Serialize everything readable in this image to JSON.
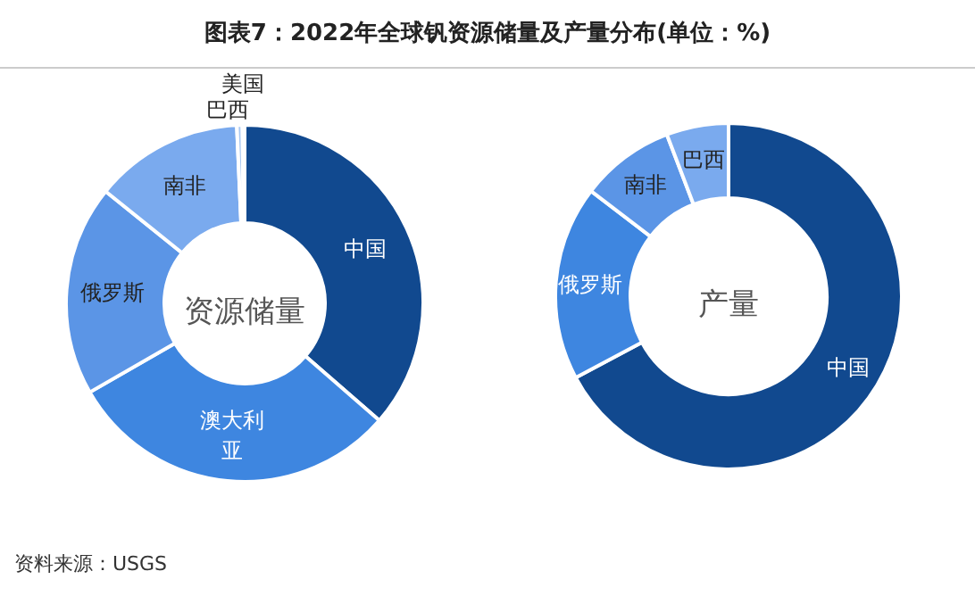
{
  "chart_data": [
    {
      "type": "donut",
      "title": "图表7：2022年全球钒资源储量及产量分布(单位：%)",
      "annotations": [
        "资源储量"
      ],
      "categories": [
        "中国",
        "澳大利亚",
        "俄罗斯",
        "南非",
        "巴西",
        "美国"
      ],
      "values": [
        36.4,
        30.3,
        19.1,
        13.5,
        0.5,
        0.2
      ],
      "colors": [
        "#11498f",
        "#3e86e0",
        "#5b95e6",
        "#7aaaee",
        "#a9c8f2",
        "#d6e4f7"
      ]
    },
    {
      "type": "donut",
      "annotations": [
        "产量",
        "资料来源：USGS"
      ],
      "categories": [
        "中国",
        "俄罗斯",
        "南非",
        "巴西"
      ],
      "values": [
        67.2,
        18.2,
        8.8,
        5.8
      ],
      "colors": [
        "#11498f",
        "#3e86e0",
        "#5b95e6",
        "#7aaaee"
      ]
    }
  ]
}
